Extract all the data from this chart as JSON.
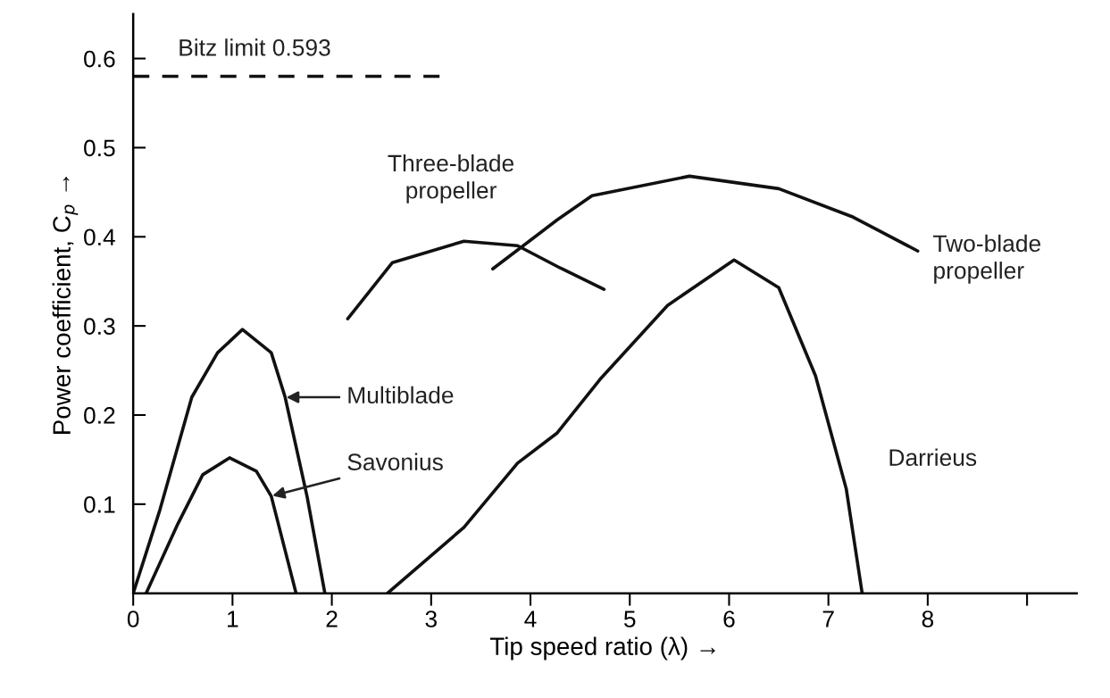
{
  "chart_data": {
    "type": "line",
    "xlabel": "Tip speed ratio (λ) →",
    "ylabel": "Power coefficient, C$_{p}$ →",
    "xlim": [
      0,
      9.5
    ],
    "ylim": [
      0,
      0.65
    ],
    "xticks": [
      0,
      1,
      2,
      3,
      4,
      5,
      6,
      7,
      8,
      {
        "value": 9,
        "label": null
      }
    ],
    "yticks": [
      0.1,
      0.2,
      0.3,
      0.4,
      0.5,
      0.6
    ],
    "grid": false,
    "legend": false,
    "marker": "none",
    "line_style": "solid",
    "annotations": [
      "Bitz limit 0.593"
    ],
    "series": [
      {
        "name": "Multiblade",
        "color": "#111111",
        "x": [
          0,
          0.27,
          0.59,
          0.85,
          1.1,
          1.39,
          1.53,
          1.75,
          1.93
        ],
        "values": [
          0,
          0.094,
          0.22,
          0.27,
          0.296,
          0.27,
          0.22,
          0.109,
          0
        ]
      },
      {
        "name": "Savonius",
        "color": "#111111",
        "x": [
          0.13,
          0.45,
          0.7,
          0.97,
          1.24,
          1.39,
          1.64
        ],
        "values": [
          0,
          0.078,
          0.133,
          0.152,
          0.137,
          0.109,
          0
        ]
      },
      {
        "name": "Three-blade\npropeller",
        "color": "#111111",
        "x": [
          2.16,
          2.61,
          3.33,
          3.87,
          4.3,
          4.74
        ],
        "values": [
          0.308,
          0.371,
          0.395,
          0.39,
          0.365,
          0.341
        ]
      },
      {
        "name": "Two-blade\npropeller",
        "color": "#111111",
        "x": [
          3.62,
          4.27,
          4.62,
          5.6,
          6.5,
          7.25,
          7.9
        ],
        "values": [
          0.364,
          0.419,
          0.446,
          0.468,
          0.454,
          0.422,
          0.384
        ]
      },
      {
        "name": "Darrieus",
        "color": "#111111",
        "x": [
          2.56,
          3.33,
          3.87,
          4.27,
          4.7,
          5.38,
          6.05,
          6.5,
          6.87,
          7.18,
          7.34
        ],
        "values": [
          0,
          0.074,
          0.146,
          0.18,
          0.24,
          0.323,
          0.374,
          0.343,
          0.244,
          0.117,
          0
        ]
      },
      {
        "color": "#111111",
        "line_style": "dashed",
        "x": [
          0,
          3.1
        ],
        "values": [
          0.58,
          0.58
        ]
      }
    ]
  }
}
